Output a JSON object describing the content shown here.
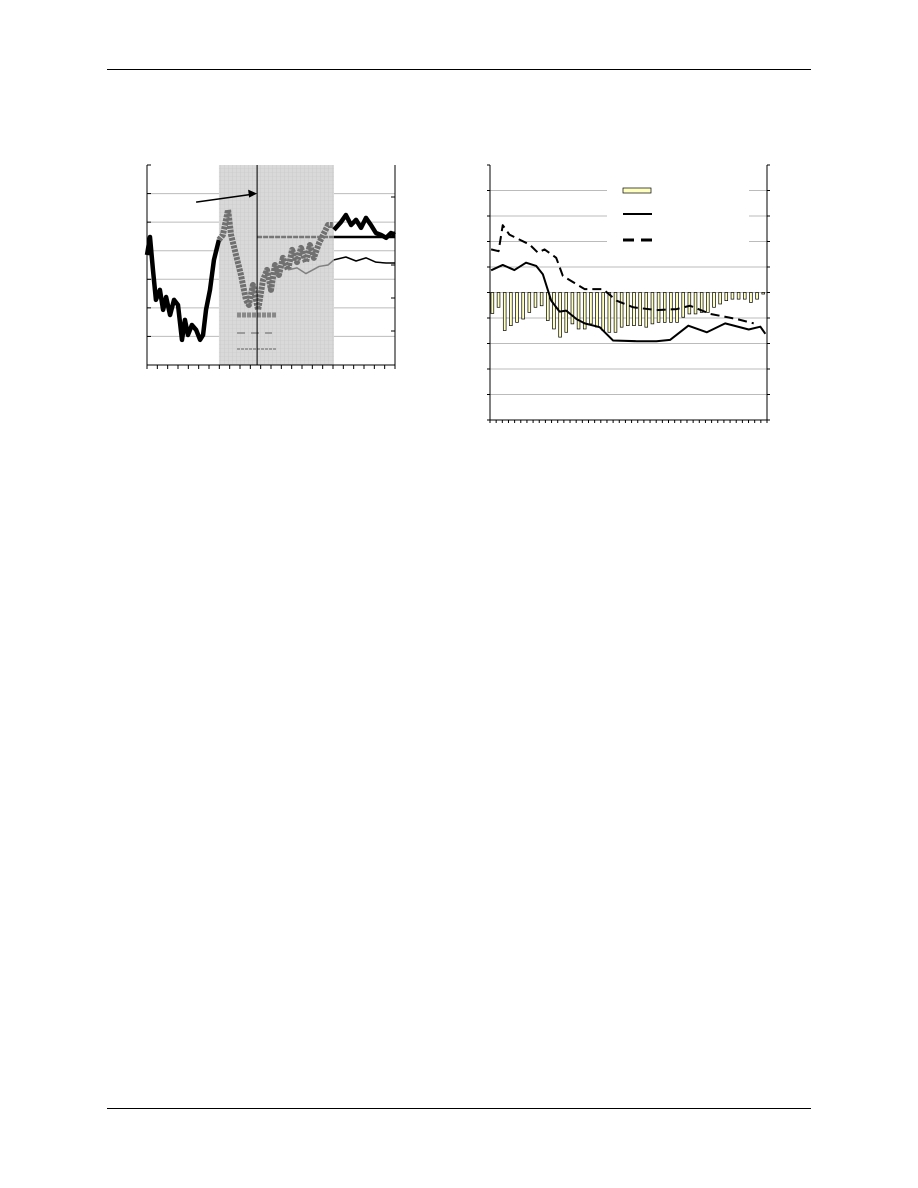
{
  "page": {
    "header_rule": true,
    "footer_rule": true
  },
  "chart_data": [
    {
      "type": "line",
      "grid": true,
      "xlim": [
        0,
        100
      ],
      "ylim": [
        0,
        7
      ],
      "shaded_region": {
        "x": [
          29,
          75.4
        ],
        "color": "#d9d9d9"
      },
      "vertical_marker": {
        "x": 44.4
      },
      "arrow": {
        "from": [
          19.8,
          5.7
        ],
        "to": [
          44.4,
          6.0
        ]
      },
      "series": [
        {
          "style": "black-thick",
          "color": "#000000",
          "x": [
            0,
            1.2,
            2.4,
            3.6,
            5.2,
            6.5,
            7.7,
            9.3,
            10.9,
            12.5,
            14.1,
            15.3,
            16.5,
            18.1,
            19.8,
            21.4,
            22.6,
            23.8,
            25.4,
            27,
            29
          ],
          "y": [
            3.85,
            4.48,
            3.33,
            2.28,
            2.63,
            1.93,
            2.38,
            1.75,
            2.28,
            2.1,
            0.88,
            1.58,
            1.05,
            1.4,
            1.23,
            0.88,
            1.05,
            1.93,
            2.63,
            3.68,
            4.38
          ]
        },
        {
          "style": "gray-thick",
          "color": "#707070",
          "x": [
            29,
            30.6,
            32.7,
            33.9,
            35.9,
            37.9,
            39.9,
            41.1,
            42.7,
            44.8,
            46.8,
            48.4,
            50,
            51.6,
            53.2,
            54.8,
            56.9,
            58.5,
            60.5,
            62.1,
            64.1,
            65.7,
            67.3,
            69.4,
            71,
            73,
            75.4
          ],
          "y": [
            4.38,
            4.55,
            5.43,
            4.55,
            3.85,
            3.15,
            2.28,
            2.1,
            2.8,
            1.93,
            2.98,
            3.33,
            2.63,
            3.5,
            3.15,
            3.75,
            3.33,
            4.03,
            3.6,
            4.1,
            3.6,
            4.2,
            3.75,
            4.27,
            4.55,
            4.9,
            4.9
          ]
        },
        {
          "style": "gray-thin",
          "color": "#808080",
          "x": [
            56.9,
            60.5,
            64.1,
            67.3,
            69.4,
            73,
            75.4
          ],
          "y": [
            3.33,
            3.4,
            3.2,
            3.35,
            3.45,
            3.5,
            3.68
          ]
        },
        {
          "style": "black-thick",
          "color": "#000000",
          "x": [
            75.4,
            78.2,
            80.2,
            82.3,
            84.3,
            86.3,
            88.3,
            90.3,
            92.3,
            94.4,
            96.4,
            98.4,
            100
          ],
          "y": [
            4.73,
            5.0,
            5.25,
            4.9,
            5.08,
            4.8,
            5.15,
            4.9,
            4.62,
            4.55,
            4.45,
            4.62,
            4.55
          ]
        },
        {
          "style": "black-thin",
          "color": "#000000",
          "x": [
            75.4,
            80.2,
            84.3,
            88.3,
            92.3,
            96.4,
            100
          ],
          "y": [
            3.68,
            3.78,
            3.64,
            3.75,
            3.6,
            3.57,
            3.57
          ]
        }
      ],
      "reference_lines": [
        {
          "y": 4.48,
          "x": [
            75.4,
            100
          ],
          "style": "solid"
        },
        {
          "y": 4.48,
          "x": [
            44.4,
            75.4
          ],
          "style": "gray-dashed"
        },
        {
          "y": 1.75,
          "x": [
            36.3,
            52.4
          ],
          "style": "gray-thick-dashed"
        },
        {
          "y": 1.12,
          "x": [
            36.3,
            50.4
          ],
          "style": "gray-sparse-dashed"
        },
        {
          "y": 0.56,
          "x": [
            36.3,
            52.4
          ],
          "style": "gray-fine-dashed"
        }
      ]
    },
    {
      "type": "bar+line",
      "grid": true,
      "xlim": [
        0,
        100
      ],
      "ylim": [
        -5,
        5
      ],
      "legend": "top-right",
      "bars": {
        "color": "#ffffc0",
        "values": [
          -0.82,
          -0.58,
          -1.49,
          -1.3,
          -1.17,
          -1.04,
          -0.78,
          -0.58,
          -0.52,
          -1.1,
          -1.43,
          -1.75,
          -1.56,
          -1.23,
          -1.43,
          -1.43,
          -1.23,
          -1.36,
          -1.49,
          -1.56,
          -1.56,
          -1.36,
          -1.3,
          -1.3,
          -1.3,
          -1.36,
          -1.23,
          -1.17,
          -1.17,
          -1.17,
          -1.17,
          -0.97,
          -0.84,
          -0.84,
          -0.78,
          -0.78,
          -0.58,
          -0.45,
          -0.32,
          -0.26,
          -0.26,
          -0.26,
          -0.39,
          -0.26,
          -0.06
        ]
      },
      "series": [
        {
          "style": "solid",
          "color": "#000000",
          "x": [
            0.4,
            4.6,
            8.8,
            13,
            16.7,
            19.1,
            22.1,
            25.1,
            27.5,
            31.2,
            34.2,
            39.6,
            44.4,
            52.9,
            60.1,
            65,
            71.6,
            78.3,
            84.9,
            93.4,
            97.6,
            99.4
          ],
          "y": [
            0.87,
            1.08,
            0.88,
            1.17,
            1.04,
            0.71,
            -0.32,
            -0.75,
            -0.71,
            -1.04,
            -1.21,
            -1.36,
            -1.88,
            -1.91,
            -1.91,
            -1.86,
            -1.3,
            -1.56,
            -1.21,
            -1.45,
            -1.34,
            -1.62
          ]
        },
        {
          "style": "dashed",
          "color": "#000000",
          "x": [
            0.4,
            3.1,
            4.6,
            7,
            14.3,
            17.3,
            19.7,
            23.9,
            26.3,
            34.2,
            40.8,
            45.7,
            51.7,
            60.1,
            67.4,
            72.2,
            79.5,
            89.1,
            95.2
          ],
          "y": [
            1.69,
            1.62,
            2.64,
            2.27,
            1.88,
            1.56,
            1.69,
            1.36,
            0.65,
            0.13,
            0.13,
            -0.32,
            -0.58,
            -0.69,
            -0.65,
            -0.52,
            -0.84,
            -1.04,
            -1.21
          ]
        }
      ]
    }
  ]
}
